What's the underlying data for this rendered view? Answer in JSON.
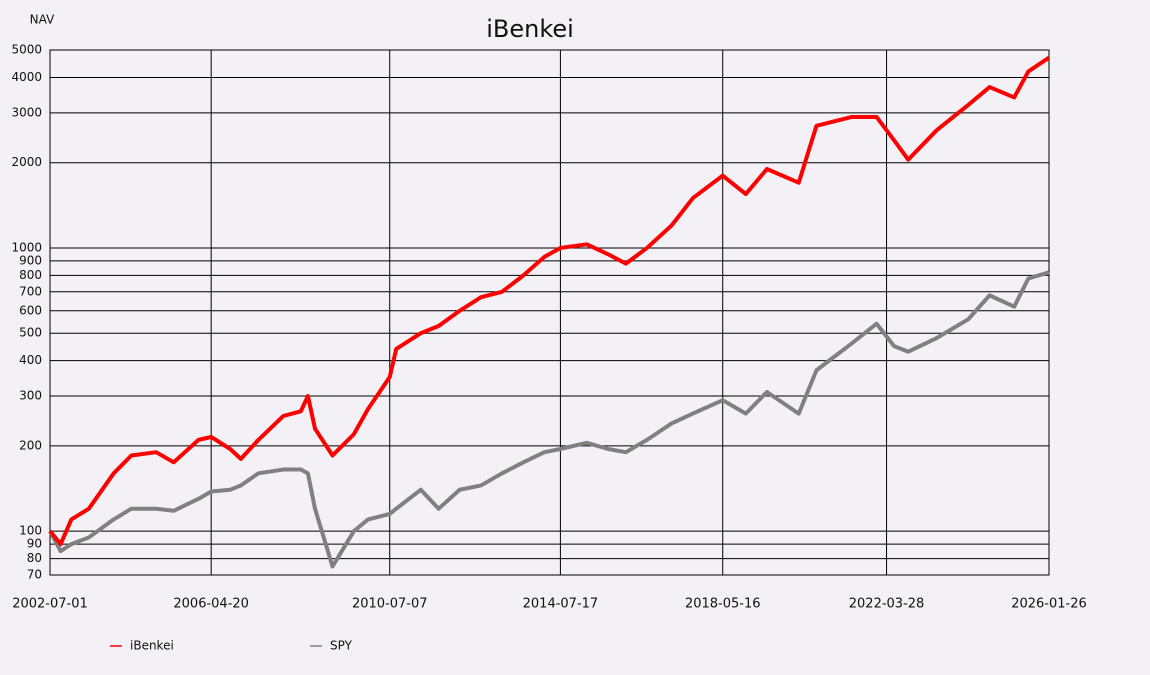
{
  "chart_data": {
    "type": "line",
    "title": "iBenkei",
    "y_label": "NAV",
    "log_scale_y": true,
    "grid": true,
    "legend_position": "bottom",
    "x": [
      "2002-07-01",
      "2002-10-01",
      "2003-01-01",
      "2003-06-01",
      "2004-01-01",
      "2004-06-01",
      "2005-01-01",
      "2005-06-01",
      "2006-01-01",
      "2006-04-20",
      "2006-10-01",
      "2007-01-01",
      "2007-06-01",
      "2008-01-01",
      "2008-06-01",
      "2008-08-01",
      "2008-10-01",
      "2009-03-01",
      "2009-09-01",
      "2010-01-01",
      "2010-07-07",
      "2010-09-01",
      "2011-04-01",
      "2011-09-01",
      "2012-03-01",
      "2012-09-01",
      "2013-03-01",
      "2013-09-01",
      "2014-03-01",
      "2014-07-17",
      "2015-03-01",
      "2015-09-01",
      "2016-02-01",
      "2016-08-01",
      "2017-03-01",
      "2017-09-01",
      "2018-05-16",
      "2018-12-01",
      "2019-06-01",
      "2020-03-01",
      "2020-08-01",
      "2021-06-01",
      "2022-01-01",
      "2022-06-01",
      "2022-10-01",
      "2023-06-01",
      "2024-03-01",
      "2024-09-01",
      "2025-04-01",
      "2025-08-01",
      "2026-01-26"
    ],
    "series": [
      {
        "name": "iBenkei",
        "color": "#ff0000",
        "values": [
          100,
          90,
          110,
          120,
          160,
          185,
          190,
          175,
          210,
          215,
          195,
          180,
          210,
          255,
          265,
          300,
          230,
          185,
          220,
          270,
          350,
          440,
          500,
          530,
          600,
          670,
          700,
          800,
          930,
          1000,
          1030,
          950,
          880,
          1000,
          1200,
          1500,
          1800,
          1550,
          1900,
          1700,
          2700,
          2900,
          2900,
          2400,
          2050,
          2600,
          3200,
          3700,
          3400,
          4200,
          4700
        ]
      },
      {
        "name": "SPY",
        "color": "#808080",
        "values": [
          100,
          85,
          90,
          95,
          110,
          120,
          120,
          118,
          130,
          138,
          140,
          145,
          160,
          165,
          165,
          160,
          120,
          75,
          100,
          110,
          115,
          120,
          140,
          120,
          140,
          145,
          160,
          175,
          190,
          195,
          205,
          195,
          190,
          210,
          240,
          260,
          290,
          260,
          310,
          260,
          370,
          460,
          540,
          450,
          430,
          480,
          560,
          680,
          620,
          780,
          820
        ]
      }
    ],
    "xlim": [
      "2002-07-01",
      "2026-01-26"
    ],
    "xticks": [
      "2002-07-01",
      "2006-04-20",
      "2010-07-07",
      "2014-07-17",
      "2018-05-16",
      "2022-03-28",
      "2026-01-26"
    ],
    "ylim": [
      70,
      5000
    ],
    "yticks": [
      70,
      80,
      90,
      100,
      200,
      300,
      400,
      500,
      600,
      700,
      800,
      900,
      1000,
      2000,
      3000,
      4000,
      5000
    ]
  }
}
